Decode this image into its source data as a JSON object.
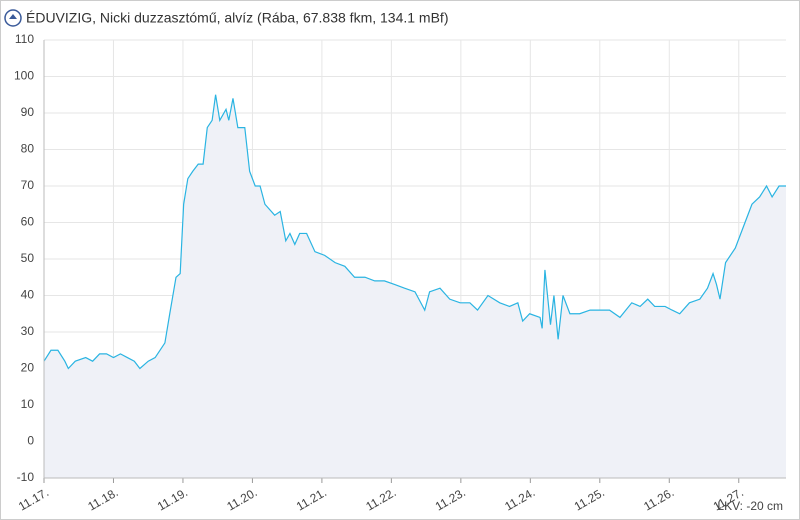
{
  "chart_data": {
    "type": "line",
    "title": "ÉDUVIZIG, Nicki duzzasztómű, alvíz (Rába, 67.838 fkm, 134.1 mBf)",
    "annotation": "LKV: -20 cm",
    "x": [
      0,
      0.1,
      0.2,
      0.3,
      0.35,
      0.45,
      0.6,
      0.7,
      0.8,
      0.9,
      1.0,
      1.1,
      1.2,
      1.3,
      1.38,
      1.5,
      1.6,
      1.74,
      1.81,
      1.9,
      1.96,
      2.01,
      2.07,
      2.14,
      2.22,
      2.29,
      2.35,
      2.42,
      2.47,
      2.53,
      2.62,
      2.66,
      2.72,
      2.79,
      2.89,
      2.96,
      3.04,
      3.11,
      3.18,
      3.32,
      3.4,
      3.48,
      3.54,
      3.61,
      3.68,
      3.78,
      3.9,
      4.04,
      4.19,
      4.33,
      4.47,
      4.62,
      4.76,
      4.9,
      5.05,
      5.19,
      5.34,
      5.48,
      5.55,
      5.7,
      5.84,
      5.99,
      6.13,
      6.24,
      6.39,
      6.56,
      6.7,
      6.82,
      6.89,
      6.99,
      7.14,
      7.17,
      7.21,
      7.29,
      7.34,
      7.4,
      7.47,
      7.57,
      7.71,
      7.86,
      8.0,
      8.14,
      8.29,
      8.46,
      8.58,
      8.69,
      8.79,
      8.94,
      9.04,
      9.15,
      9.29,
      9.44,
      9.55,
      9.63,
      9.68,
      9.73,
      9.81,
      9.95,
      10.09,
      10.19,
      10.3,
      10.4,
      10.48,
      10.58,
      10.68
    ],
    "series": [
      {
        "color": "#2ab4e2",
        "values": [
          22,
          25,
          25,
          22,
          20,
          22,
          23,
          22,
          24,
          24,
          23,
          24,
          23,
          22,
          20,
          22,
          23,
          27,
          35,
          45,
          46,
          65,
          72,
          74,
          76,
          76,
          86,
          88,
          95,
          88,
          91,
          88,
          94,
          86,
          86,
          74,
          70,
          70,
          65,
          62,
          63,
          55,
          57,
          54,
          57,
          57,
          52,
          51,
          49,
          48,
          45,
          45,
          44,
          44,
          43,
          42,
          41,
          36,
          41,
          42,
          39,
          38,
          38,
          36,
          40,
          38,
          37,
          38,
          33,
          35,
          34,
          31,
          47,
          32,
          40,
          28,
          40,
          35,
          35,
          36,
          36,
          36,
          34,
          38,
          37,
          39,
          37,
          37,
          36,
          35,
          38,
          39,
          42,
          46,
          43,
          39,
          49,
          53,
          60,
          65,
          67,
          70,
          67,
          70,
          70
        ]
      }
    ],
    "xlim": [
      0,
      10.68
    ],
    "xticks": [
      {
        "value": 0,
        "label": "11.17."
      },
      {
        "value": 1,
        "label": "11.18."
      },
      {
        "value": 2,
        "label": "11.19."
      },
      {
        "value": 3,
        "label": "11.20."
      },
      {
        "value": 4,
        "label": "11.21."
      },
      {
        "value": 5,
        "label": "11.22."
      },
      {
        "value": 6,
        "label": "11.23."
      },
      {
        "value": 7,
        "label": "11.24."
      },
      {
        "value": 8,
        "label": "11.25."
      },
      {
        "value": 9,
        "label": "11.26."
      },
      {
        "value": 10,
        "label": "11.27."
      }
    ],
    "ylim": [
      -10,
      110
    ],
    "yticks": [
      -10,
      0,
      10,
      20,
      30,
      40,
      50,
      60,
      70,
      80,
      90,
      100,
      110
    ],
    "grid": true,
    "fill": "#eff1f7"
  }
}
